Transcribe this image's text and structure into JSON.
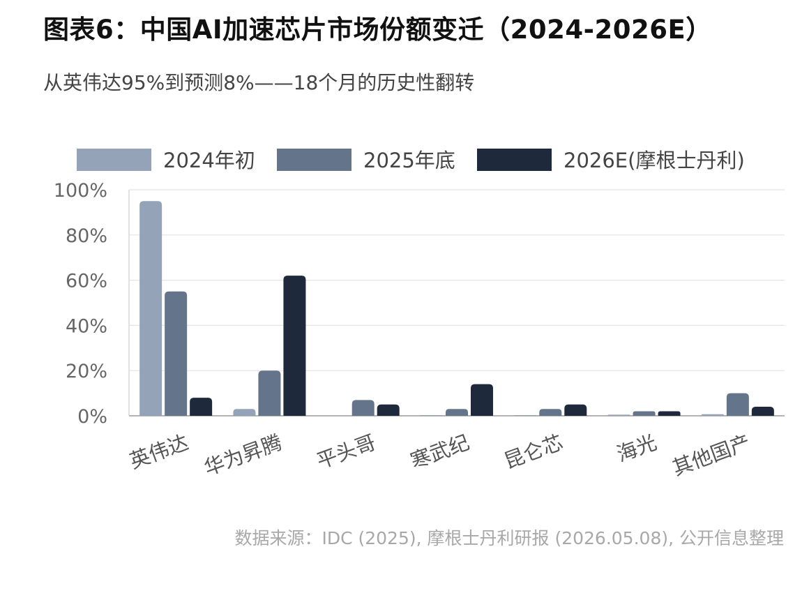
{
  "title": "图表6：中国AI加速芯片市场份额变迁（2024-2026E）",
  "subtitle": "从英伟达95%到预测8%——18个月的历史性翻转",
  "source": "数据来源：IDC (2025), 摩根士丹利研报 (2026.05.08), 公开信息整理",
  "chart_data": {
    "type": "bar",
    "categories": [
      "英伟达",
      "华为昇腾",
      "平头哥",
      "寒武纪",
      "昆仑芯",
      "海光",
      "其他国产"
    ],
    "series": [
      {
        "name": "2024年初",
        "color": "#94a3b8",
        "values": [
          95,
          3,
          0,
          0.3,
          0.3,
          0.5,
          0.7
        ]
      },
      {
        "name": "2025年底",
        "color": "#64748b",
        "values": [
          55,
          20,
          7,
          3,
          3,
          2,
          10
        ]
      },
      {
        "name": "2026E(摩根士丹利)",
        "color": "#1e293b",
        "values": [
          8,
          62,
          5,
          14,
          5,
          2,
          4
        ]
      }
    ],
    "ylim": [
      0,
      100
    ],
    "yticks": [
      0,
      20,
      40,
      60,
      80,
      100
    ],
    "ytick_labels": [
      "0%",
      "20%",
      "40%",
      "60%",
      "80%",
      "100%"
    ],
    "grid": true,
    "legend_position": "top"
  }
}
